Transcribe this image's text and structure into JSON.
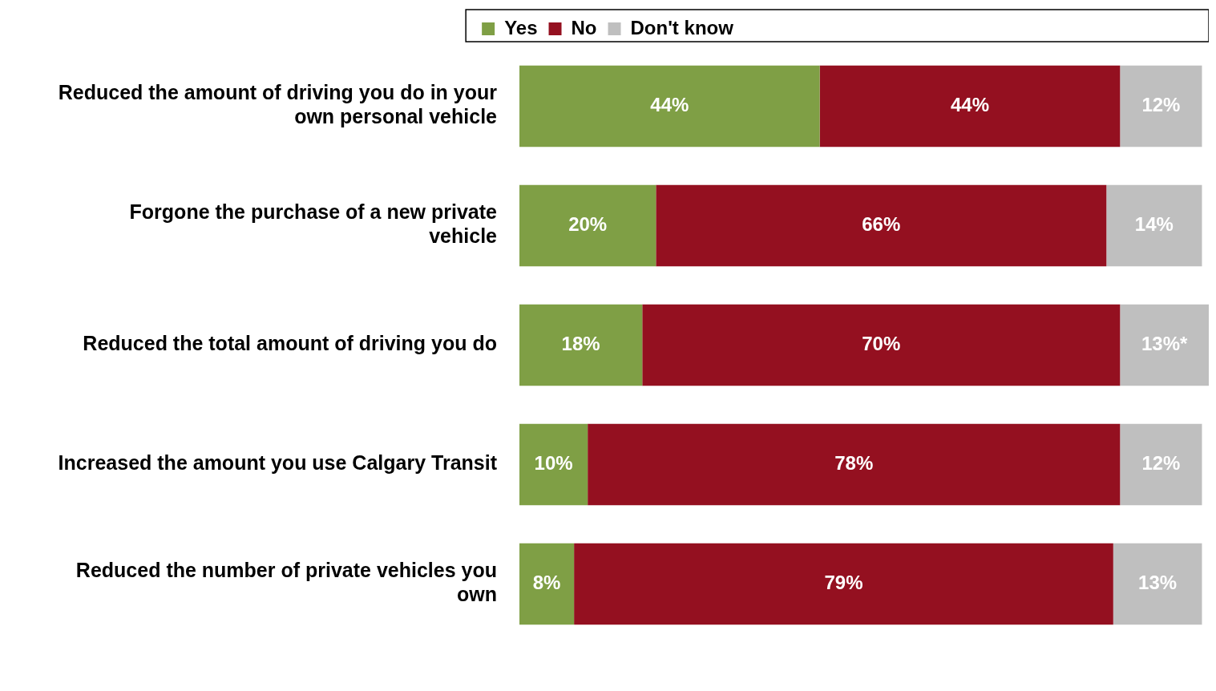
{
  "chart_data": {
    "type": "bar",
    "orientation": "horizontal",
    "stacked": true,
    "categories": [
      "Reduced the amount of driving you do in your own personal vehicle",
      "Forgone the purchase of a new private vehicle",
      "Reduced the total amount of driving you do",
      "Increased the amount you use Calgary Transit",
      "Reduced the number of private vehicles you own"
    ],
    "series": [
      {
        "name": "Yes",
        "color": "#7f9f45",
        "values": [
          44,
          20,
          18,
          10,
          8
        ],
        "value_labels": [
          "44%",
          "20%",
          "18%",
          "10%",
          "8%"
        ]
      },
      {
        "name": "No",
        "color": "#941020",
        "values": [
          44,
          66,
          70,
          78,
          79
        ],
        "value_labels": [
          "44%",
          "66%",
          "70%",
          "78%",
          "79%"
        ]
      },
      {
        "name": "Don't know",
        "color": "#bfbfbf",
        "values": [
          12,
          14,
          13,
          12,
          13
        ],
        "value_labels": [
          "12%",
          "14%",
          "13%*",
          "12%",
          "13%"
        ]
      }
    ],
    "xlim": [
      0,
      101
    ],
    "grid": false,
    "legend": "top",
    "tick_labels": "y"
  }
}
